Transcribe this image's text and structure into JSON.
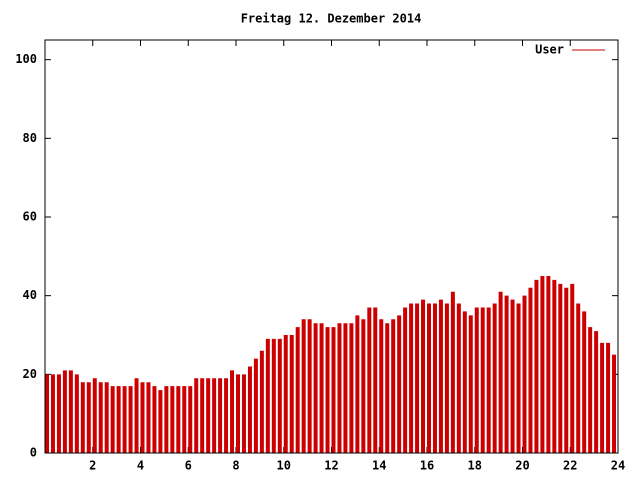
{
  "chart_data": {
    "type": "impulse",
    "title": "Freitag 12. Dezember 2014",
    "x": [
      0,
      0.25,
      0.5,
      0.75,
      1,
      1.25,
      1.5,
      1.75,
      2,
      2.25,
      2.5,
      2.75,
      3,
      3.25,
      3.5,
      3.75,
      4,
      4.25,
      4.5,
      4.75,
      5,
      5.25,
      5.5,
      5.75,
      6,
      6.25,
      6.5,
      6.75,
      7,
      7.25,
      7.5,
      7.75,
      8,
      8.25,
      8.5,
      8.75,
      9,
      9.25,
      9.5,
      9.75,
      10,
      10.25,
      10.5,
      10.75,
      11,
      11.25,
      11.5,
      11.75,
      12,
      12.25,
      12.5,
      12.75,
      13,
      13.25,
      13.5,
      13.75,
      14,
      14.25,
      14.5,
      14.75,
      15,
      15.25,
      15.5,
      15.75,
      16,
      16.25,
      16.5,
      16.75,
      17,
      17.25,
      17.5,
      17.75,
      18,
      18.25,
      18.5,
      18.75,
      19,
      19.25,
      19.5,
      19.75,
      20,
      20.25,
      20.5,
      20.75,
      21,
      21.25,
      21.5,
      21.75,
      22,
      22.25,
      22.5,
      22.75,
      23,
      23.25,
      23.5,
      23.75
    ],
    "series": [
      {
        "name": "User",
        "color": "#cc0000",
        "values": [
          20,
          20,
          20,
          21,
          21,
          20,
          18,
          18,
          19,
          18,
          18,
          17,
          17,
          17,
          17,
          19,
          18,
          18,
          17,
          16,
          17,
          17,
          17,
          17,
          17,
          19,
          19,
          19,
          19,
          19,
          19,
          21,
          20,
          20,
          22,
          24,
          26,
          29,
          29,
          29,
          30,
          30,
          32,
          34,
          34,
          33,
          33,
          32,
          32,
          33,
          33,
          33,
          35,
          34,
          37,
          37,
          34,
          33,
          34,
          35,
          37,
          38,
          38,
          39,
          38,
          38,
          39,
          38,
          41,
          38,
          36,
          35,
          37,
          37,
          37,
          38,
          41,
          40,
          39,
          38,
          40,
          42,
          44,
          45,
          45,
          44,
          43,
          42,
          43,
          38,
          36,
          32,
          31,
          28,
          28,
          25
        ]
      }
    ],
    "xlim": [
      0,
      24
    ],
    "xticks": [
      2,
      4,
      6,
      8,
      10,
      12,
      14,
      16,
      18,
      20,
      22,
      24
    ],
    "ylim": [
      0,
      105
    ],
    "yticks": [
      0,
      20,
      40,
      60,
      80,
      100
    ],
    "legend": "top-right"
  }
}
